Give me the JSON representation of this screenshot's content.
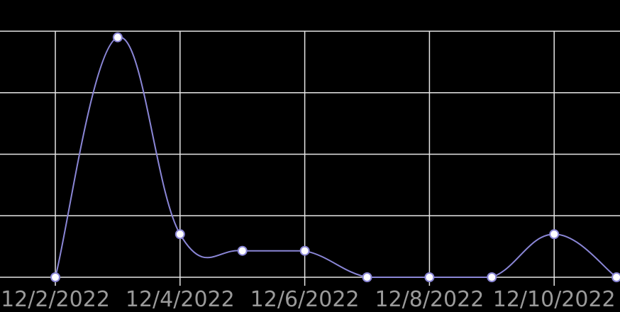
{
  "chart_data": {
    "type": "line",
    "title": "",
    "xlabel": "",
    "ylabel": "",
    "x": [
      "12/2/2022",
      "12/3/2022",
      "12/4/2022",
      "12/5/2022",
      "12/6/2022",
      "12/7/2022",
      "12/8/2022",
      "12/9/2022",
      "12/10/2022",
      "12/11/2022"
    ],
    "x_tick_labels": [
      "12/2/2022",
      "12/4/2022",
      "12/6/2022",
      "12/8/2022",
      "12/10/2022"
    ],
    "series": [
      {
        "values": [
          0,
          3.9,
          0.7,
          0.43,
          0.43,
          0,
          0,
          0,
          0.7,
          0
        ]
      }
    ],
    "ylim": [
      0,
      4
    ],
    "grid": true,
    "line_color": "#8a86d6",
    "marker_fill": "#ffffff",
    "background": "#000000",
    "grid_color": "#e6e6e6"
  }
}
